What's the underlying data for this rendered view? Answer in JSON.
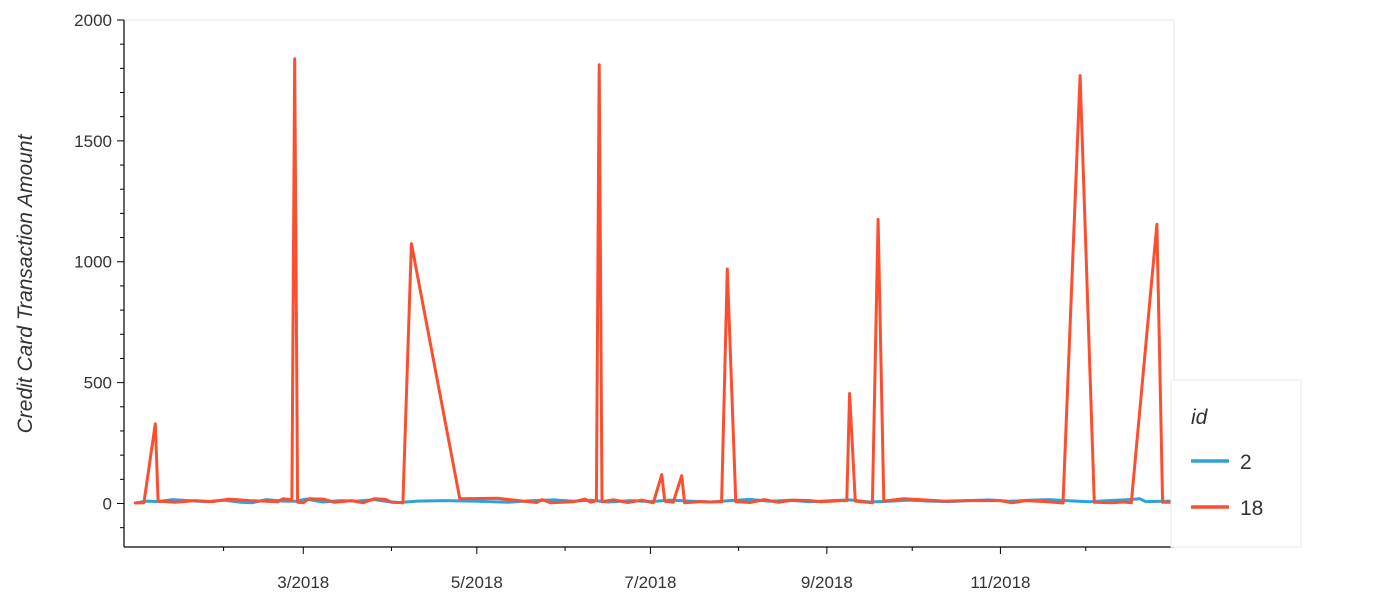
{
  "chart_data": {
    "type": "line",
    "title": "",
    "xlabel": "",
    "ylabel": "Credit Card Transaction Amount",
    "x_range": [
      "2018-01-01",
      "2018-12-31"
    ],
    "ylim": [
      -180,
      2000
    ],
    "y_ticks": [
      0,
      500,
      1000,
      1500,
      2000
    ],
    "y_tick_labels": [
      "0",
      "500",
      "1000",
      "1500",
      "2000"
    ],
    "x_ticks": [
      "2018-03-01",
      "2018-05-01",
      "2018-07-01",
      "2018-09-01",
      "2018-11-01"
    ],
    "x_tick_labels": [
      "3/2018",
      "5/2018",
      "7/2018",
      "9/2018",
      "11/2018"
    ],
    "grid": false,
    "legend": {
      "title": "id",
      "position": "bottom-right outside plot"
    },
    "series": [
      {
        "name": "2",
        "color": "#30a2da",
        "points": [
          [
            "2018-01-01",
            2
          ],
          [
            "2018-01-05",
            10
          ],
          [
            "2018-01-09",
            8
          ],
          [
            "2018-01-14",
            16
          ],
          [
            "2018-01-20",
            12
          ],
          [
            "2018-01-26",
            7
          ],
          [
            "2018-02-01",
            14
          ],
          [
            "2018-02-07",
            5
          ],
          [
            "2018-02-11",
            3
          ],
          [
            "2018-02-16",
            16
          ],
          [
            "2018-02-22",
            10
          ],
          [
            "2018-02-26",
            9
          ],
          [
            "2018-03-02",
            18
          ],
          [
            "2018-03-08",
            6
          ],
          [
            "2018-03-14",
            12
          ],
          [
            "2018-03-20",
            10
          ],
          [
            "2018-03-26",
            16
          ],
          [
            "2018-03-31",
            7
          ],
          [
            "2018-04-04",
            4
          ],
          [
            "2018-04-10",
            10
          ],
          [
            "2018-04-20",
            12
          ],
          [
            "2018-05-01",
            9
          ],
          [
            "2018-05-12",
            5
          ],
          [
            "2018-05-20",
            11
          ],
          [
            "2018-05-28",
            15
          ],
          [
            "2018-06-04",
            9
          ],
          [
            "2018-06-10",
            13
          ],
          [
            "2018-06-16",
            6
          ],
          [
            "2018-06-24",
            12
          ],
          [
            "2018-07-01",
            8
          ],
          [
            "2018-07-08",
            14
          ],
          [
            "2018-07-15",
            10
          ],
          [
            "2018-07-22",
            6
          ],
          [
            "2018-07-29",
            12
          ],
          [
            "2018-08-05",
            17
          ],
          [
            "2018-08-12",
            9
          ],
          [
            "2018-08-19",
            13
          ],
          [
            "2018-08-26",
            7
          ],
          [
            "2018-09-02",
            11
          ],
          [
            "2018-09-09",
            15
          ],
          [
            "2018-09-16",
            6
          ],
          [
            "2018-09-23",
            9
          ],
          [
            "2018-09-30",
            14
          ],
          [
            "2018-10-07",
            10
          ],
          [
            "2018-10-14",
            8
          ],
          [
            "2018-10-21",
            12
          ],
          [
            "2018-10-28",
            15
          ],
          [
            "2018-11-04",
            9
          ],
          [
            "2018-11-11",
            13
          ],
          [
            "2018-11-18",
            16
          ],
          [
            "2018-11-25",
            11
          ],
          [
            "2018-12-02",
            7
          ],
          [
            "2018-12-09",
            12
          ],
          [
            "2018-12-16",
            16
          ],
          [
            "2018-12-20",
            20
          ],
          [
            "2018-12-22",
            8
          ],
          [
            "2018-12-31",
            10
          ]
        ]
      },
      {
        "name": "18",
        "color": "#fc4f30",
        "points": [
          [
            "2018-01-01",
            2
          ],
          [
            "2018-01-04",
            3
          ],
          [
            "2018-01-08",
            330
          ],
          [
            "2018-01-09",
            10
          ],
          [
            "2018-01-15",
            5
          ],
          [
            "2018-01-22",
            12
          ],
          [
            "2018-01-28",
            8
          ],
          [
            "2018-02-03",
            18
          ],
          [
            "2018-02-10",
            12
          ],
          [
            "2018-02-20",
            7
          ],
          [
            "2018-02-22",
            20
          ],
          [
            "2018-02-25",
            15
          ],
          [
            "2018-02-26",
            1840
          ],
          [
            "2018-02-27",
            5
          ],
          [
            "2018-03-01",
            3
          ],
          [
            "2018-03-03",
            20
          ],
          [
            "2018-03-08",
            18
          ],
          [
            "2018-03-12",
            5
          ],
          [
            "2018-03-18",
            12
          ],
          [
            "2018-03-22",
            3
          ],
          [
            "2018-03-26",
            20
          ],
          [
            "2018-03-30",
            17
          ],
          [
            "2018-04-01",
            5
          ],
          [
            "2018-04-05",
            3
          ],
          [
            "2018-04-08",
            1075
          ],
          [
            "2018-04-25",
            20
          ],
          [
            "2018-05-08",
            22
          ],
          [
            "2018-05-14",
            14
          ],
          [
            "2018-05-22",
            4
          ],
          [
            "2018-05-24",
            16
          ],
          [
            "2018-05-27",
            3
          ],
          [
            "2018-06-04",
            7
          ],
          [
            "2018-06-08",
            18
          ],
          [
            "2018-06-10",
            5
          ],
          [
            "2018-06-12",
            12
          ],
          [
            "2018-06-13",
            1815
          ],
          [
            "2018-06-14",
            8
          ],
          [
            "2018-06-18",
            15
          ],
          [
            "2018-06-23",
            4
          ],
          [
            "2018-06-28",
            14
          ],
          [
            "2018-07-02",
            3
          ],
          [
            "2018-07-05",
            120
          ],
          [
            "2018-07-06",
            10
          ],
          [
            "2018-07-09",
            5
          ],
          [
            "2018-07-12",
            115
          ],
          [
            "2018-07-13",
            3
          ],
          [
            "2018-07-19",
            8
          ],
          [
            "2018-07-22",
            6
          ],
          [
            "2018-07-26",
            7
          ],
          [
            "2018-07-28",
            970
          ],
          [
            "2018-07-31",
            8
          ],
          [
            "2018-08-05",
            4
          ],
          [
            "2018-08-10",
            16
          ],
          [
            "2018-08-15",
            5
          ],
          [
            "2018-08-20",
            14
          ],
          [
            "2018-08-26",
            12
          ],
          [
            "2018-08-30",
            7
          ],
          [
            "2018-09-06",
            12
          ],
          [
            "2018-09-08",
            12
          ],
          [
            "2018-09-09",
            455
          ],
          [
            "2018-09-11",
            10
          ],
          [
            "2018-09-17",
            3
          ],
          [
            "2018-09-19",
            1175
          ],
          [
            "2018-09-21",
            10
          ],
          [
            "2018-09-28",
            20
          ],
          [
            "2018-10-05",
            15
          ],
          [
            "2018-10-12",
            10
          ],
          [
            "2018-10-20",
            12
          ],
          [
            "2018-11-01",
            12
          ],
          [
            "2018-11-05",
            3
          ],
          [
            "2018-11-10",
            12
          ],
          [
            "2018-11-17",
            8
          ],
          [
            "2018-11-23",
            2
          ],
          [
            "2018-11-29",
            1770
          ],
          [
            "2018-12-04",
            5
          ],
          [
            "2018-12-10",
            3
          ],
          [
            "2018-12-14",
            6
          ],
          [
            "2018-12-17",
            3
          ],
          [
            "2018-12-26",
            1155
          ],
          [
            "2018-12-28",
            5
          ],
          [
            "2018-12-31",
            5
          ]
        ]
      }
    ]
  }
}
